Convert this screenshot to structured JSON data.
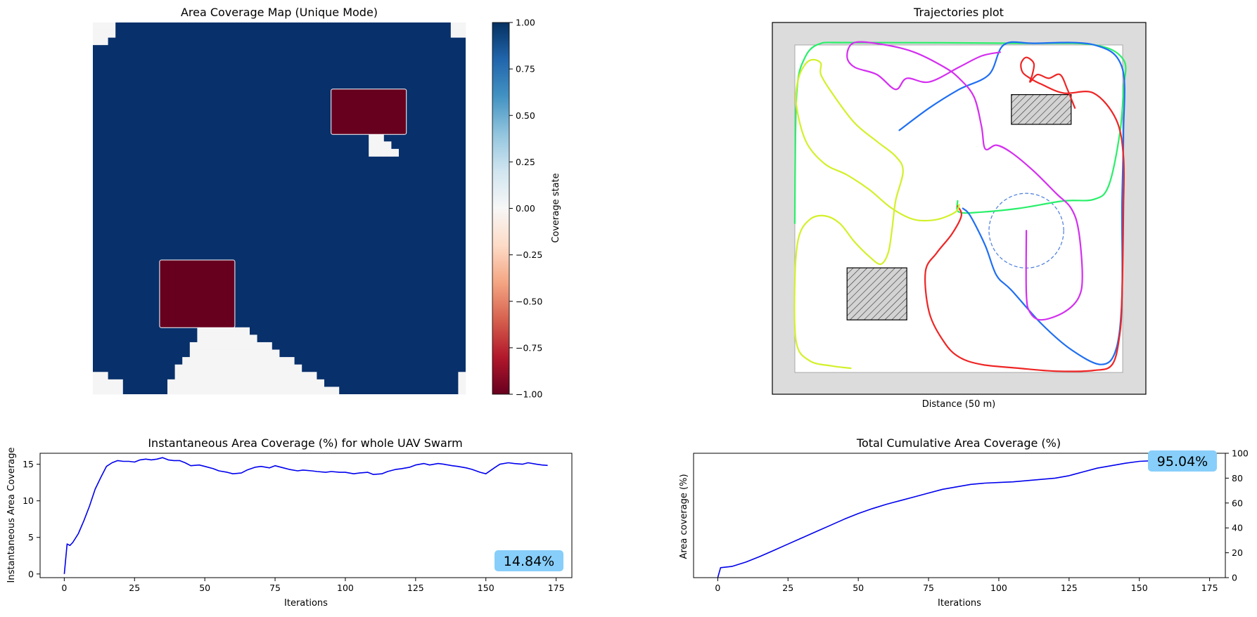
{
  "chart_data": [
    {
      "type": "heatmap",
      "title": "Area Coverage Map (Unique Mode)",
      "colorbar": {
        "label": "Coverage state",
        "range": [
          -1.0,
          1.0
        ],
        "ticks": [
          "1.00",
          "0.75",
          "0.50",
          "0.25",
          "0.00",
          "−0.25",
          "−0.50",
          "−0.75",
          "−1.00"
        ],
        "colors": [
          "#67001f",
          "#b2182b",
          "#d6604d",
          "#f4a582",
          "#fddbc7",
          "#f7f7f7",
          "#d1e5f0",
          "#92c5de",
          "#4393c3",
          "#2166ac",
          "#053061"
        ]
      },
      "colors": {
        "covered": "#08306b",
        "uncovered": "#f5f5f5",
        "obstacle": "#67001f"
      },
      "grid_size": 50,
      "covered_value": 1.0,
      "uncovered_value": 0.0,
      "obstacle_value": -1.0,
      "obstacles": [
        {
          "col_range": [
            32,
            41
          ],
          "row_range": [
            9,
            14
          ]
        },
        {
          "col_range": [
            9,
            18
          ],
          "row_range": [
            32,
            40
          ]
        }
      ]
    },
    {
      "type": "line",
      "title": "Trajectories plot",
      "xlabel": "Distance  (50 m)",
      "xlim": [
        -3,
        47
      ],
      "ylim": [
        -3,
        47
      ],
      "arena": [
        0,
        44
      ],
      "obstacles": [
        {
          "x": [
            29,
            37
          ],
          "y": [
            33.3,
            37.3
          ]
        },
        {
          "x": [
            7,
            15
          ],
          "y": [
            7,
            14
          ]
        }
      ],
      "sensing_circle": {
        "center": [
          31,
          19
        ],
        "radius": 5,
        "color": "#4a7ddb"
      },
      "series": [
        {
          "color": "#2aef6a",
          "points": [
            [
              0,
              20
            ],
            [
              0.1,
              32
            ],
            [
              0.3,
              38
            ],
            [
              1,
              41.5
            ],
            [
              3,
              44
            ],
            [
              8,
              44.3
            ],
            [
              30,
              44.2
            ],
            [
              40,
              44
            ],
            [
              44,
              42
            ],
            [
              44,
              38
            ],
            [
              43.5,
              32
            ],
            [
              42,
              25
            ],
            [
              40,
              23.2
            ],
            [
              36,
              23
            ],
            [
              30,
              22
            ],
            [
              25,
              21.5
            ],
            [
              22,
              21.5
            ],
            [
              21.8,
              23
            ]
          ]
        },
        {
          "color": "#1f6ff2",
          "points": [
            [
              14,
              32.5
            ],
            [
              18,
              35.5
            ],
            [
              22,
              38
            ],
            [
              26,
              40
            ],
            [
              28,
              44
            ],
            [
              32,
              44.2
            ],
            [
              40,
              44
            ],
            [
              43.8,
              41
            ],
            [
              44,
              32
            ],
            [
              43.8,
              22
            ],
            [
              43.8,
              10
            ],
            [
              43,
              3
            ],
            [
              41,
              1
            ],
            [
              37,
              3
            ],
            [
              33,
              6.5
            ],
            [
              29,
              11
            ],
            [
              27,
              13
            ],
            [
              25.5,
              17
            ],
            [
              23.5,
              21
            ],
            [
              22.5,
              22
            ]
          ]
        },
        {
          "color": "#ef2525",
          "points": [
            [
              37.5,
              35.5
            ],
            [
              36.5,
              38
            ],
            [
              35.5,
              40
            ],
            [
              34,
              39.5
            ],
            [
              32.5,
              40
            ],
            [
              31.5,
              39
            ],
            [
              31.8,
              40
            ],
            [
              32,
              41.5
            ],
            [
              31,
              42.3
            ],
            [
              30.3,
              41.5
            ],
            [
              30.5,
              40.3
            ],
            [
              31.5,
              39.5
            ],
            [
              33,
              38.7
            ],
            [
              36,
              37.5
            ],
            [
              40,
              37.5
            ],
            [
              43,
              34
            ],
            [
              44,
              29
            ],
            [
              44,
              22
            ],
            [
              43.8,
              10
            ],
            [
              43.5,
              5
            ],
            [
              42.5,
              1
            ],
            [
              40,
              0.2
            ],
            [
              35,
              0.1
            ],
            [
              30,
              0.5
            ],
            [
              25,
              1
            ],
            [
              22,
              2
            ],
            [
              20,
              4
            ],
            [
              18,
              8
            ],
            [
              17.5,
              13.5
            ],
            [
              19,
              16
            ],
            [
              21,
              18.5
            ],
            [
              22.3,
              21
            ],
            [
              21.8,
              22.3
            ]
          ]
        },
        {
          "color": "#d42ff0",
          "points": [
            [
              27.5,
              43
            ],
            [
              25,
              42.5
            ],
            [
              22,
              41
            ],
            [
              18,
              39
            ],
            [
              15,
              39.5
            ],
            [
              13.5,
              38
            ],
            [
              11,
              40
            ],
            [
              8,
              41
            ],
            [
              7,
              42.5
            ],
            [
              8,
              44.3
            ],
            [
              12,
              44
            ],
            [
              16,
              43
            ],
            [
              20,
              41
            ],
            [
              22,
              39.5
            ],
            [
              24,
              37
            ],
            [
              25,
              33
            ],
            [
              25.5,
              30
            ],
            [
              27,
              30.5
            ],
            [
              29,
              29.5
            ],
            [
              32,
              27
            ],
            [
              35,
              24
            ],
            [
              37,
              22
            ],
            [
              38,
              19
            ],
            [
              38.5,
              13
            ],
            [
              38,
              10
            ],
            [
              36,
              8
            ],
            [
              33,
              7
            ],
            [
              31.5,
              8
            ],
            [
              31,
              10.5
            ],
            [
              31,
              19
            ]
          ]
        },
        {
          "color": "#d4f02a",
          "points": [
            [
              7.5,
              0.5
            ],
            [
              5,
              0.8
            ],
            [
              2,
              1.5
            ],
            [
              0.2,
              4
            ],
            [
              0,
              12
            ],
            [
              0.5,
              18
            ],
            [
              2,
              20.5
            ],
            [
              4,
              21
            ],
            [
              6,
              20
            ],
            [
              8,
              17.5
            ],
            [
              10,
              15.5
            ],
            [
              11.5,
              14.5
            ],
            [
              12.5,
              16
            ],
            [
              13,
              19
            ],
            [
              13.5,
              23
            ],
            [
              14.5,
              27
            ],
            [
              13.5,
              29
            ],
            [
              11,
              31
            ],
            [
              8,
              33.5
            ],
            [
              5,
              37.5
            ],
            [
              3.5,
              40
            ],
            [
              3.5,
              41.5
            ],
            [
              2.5,
              42
            ],
            [
              1.5,
              41.5
            ],
            [
              0.5,
              39.5
            ],
            [
              0.2,
              36
            ],
            [
              1.5,
              31
            ],
            [
              4,
              28
            ],
            [
              7,
              26.5
            ],
            [
              10,
              24.5
            ],
            [
              13,
              22
            ],
            [
              16,
              20.5
            ],
            [
              19,
              20.5
            ],
            [
              21.5,
              21.5
            ],
            [
              22,
              22.5
            ]
          ]
        }
      ]
    },
    {
      "type": "line",
      "title": "Instantaneous Area Coverage (%) for whole UAV Swarm",
      "xlabel": "Iterations",
      "ylabel": "Instantaneous Area Coverage",
      "xlim": [
        -8.6,
        180.6
      ],
      "ylim": [
        -0.5,
        16.5
      ],
      "xticks": [
        0,
        25,
        50,
        75,
        100,
        125,
        150,
        175
      ],
      "yticks": [
        0,
        5,
        10,
        15
      ],
      "annotation": {
        "text": "14.84%",
        "color": "#87cefa"
      },
      "series": [
        {
          "color": "#0000ee",
          "x": [
            0,
            1,
            2,
            3,
            5,
            7,
            9,
            11,
            13,
            15,
            17,
            19,
            21,
            23,
            25,
            27,
            29,
            31,
            33,
            35,
            37,
            39,
            41,
            43,
            45,
            48,
            50,
            53,
            55,
            58,
            60,
            63,
            65,
            68,
            70,
            73,
            75,
            78,
            80,
            83,
            85,
            88,
            90,
            93,
            95,
            98,
            100,
            103,
            105,
            108,
            110,
            113,
            115,
            118,
            120,
            123,
            125,
            128,
            130,
            133,
            135,
            138,
            140,
            143,
            145,
            148,
            150,
            153,
            155,
            158,
            160,
            163,
            165,
            168,
            170,
            172
          ],
          "y": [
            0,
            4.1,
            3.9,
            4.3,
            5.5,
            7.3,
            9.3,
            11.6,
            13.2,
            14.7,
            15.2,
            15.5,
            15.4,
            15.4,
            15.3,
            15.6,
            15.7,
            15.6,
            15.7,
            15.9,
            15.6,
            15.5,
            15.5,
            15.2,
            14.8,
            14.9,
            14.7,
            14.4,
            14.1,
            13.9,
            13.7,
            13.8,
            14.2,
            14.6,
            14.7,
            14.5,
            14.8,
            14.5,
            14.3,
            14.1,
            14.2,
            14.1,
            14.0,
            13.9,
            14.0,
            13.9,
            13.9,
            13.7,
            13.8,
            13.9,
            13.6,
            13.7,
            14.0,
            14.3,
            14.4,
            14.6,
            14.9,
            15.1,
            14.9,
            15.1,
            15.0,
            14.8,
            14.7,
            14.5,
            14.3,
            13.9,
            13.7,
            14.5,
            15.0,
            15.2,
            15.1,
            15.0,
            15.2,
            15.0,
            14.9,
            14.84
          ]
        }
      ]
    },
    {
      "type": "line",
      "title": "Total Cumulative Area Coverage (%)",
      "xlabel": "Iterations",
      "ylabel": "Area coverage (%)",
      "xlim": [
        -8.6,
        180.6
      ],
      "ylim": [
        0,
        100
      ],
      "xticks": [
        0,
        25,
        50,
        75,
        100,
        125,
        150,
        175
      ],
      "yticks": [
        0,
        20,
        40,
        60,
        80,
        100
      ],
      "y_axis_side": "right",
      "annotation": {
        "text": "95.04%",
        "color": "#87cefa"
      },
      "series": [
        {
          "color": "#0000ee",
          "x": [
            0,
            1,
            5,
            10,
            15,
            20,
            25,
            30,
            35,
            40,
            45,
            50,
            55,
            60,
            65,
            70,
            75,
            80,
            85,
            90,
            95,
            100,
            105,
            110,
            115,
            120,
            125,
            130,
            135,
            140,
            145,
            150,
            155,
            160,
            165,
            170,
            172
          ],
          "y": [
            0,
            8,
            9,
            12.5,
            17,
            22,
            27,
            32,
            37,
            42,
            47,
            51.5,
            55.5,
            59,
            62,
            65,
            68,
            71,
            73,
            75,
            76,
            76.5,
            77,
            78,
            79,
            80,
            82,
            85,
            88,
            90,
            92,
            93.5,
            94,
            94.5,
            94.8,
            95,
            95.04
          ]
        }
      ]
    }
  ]
}
